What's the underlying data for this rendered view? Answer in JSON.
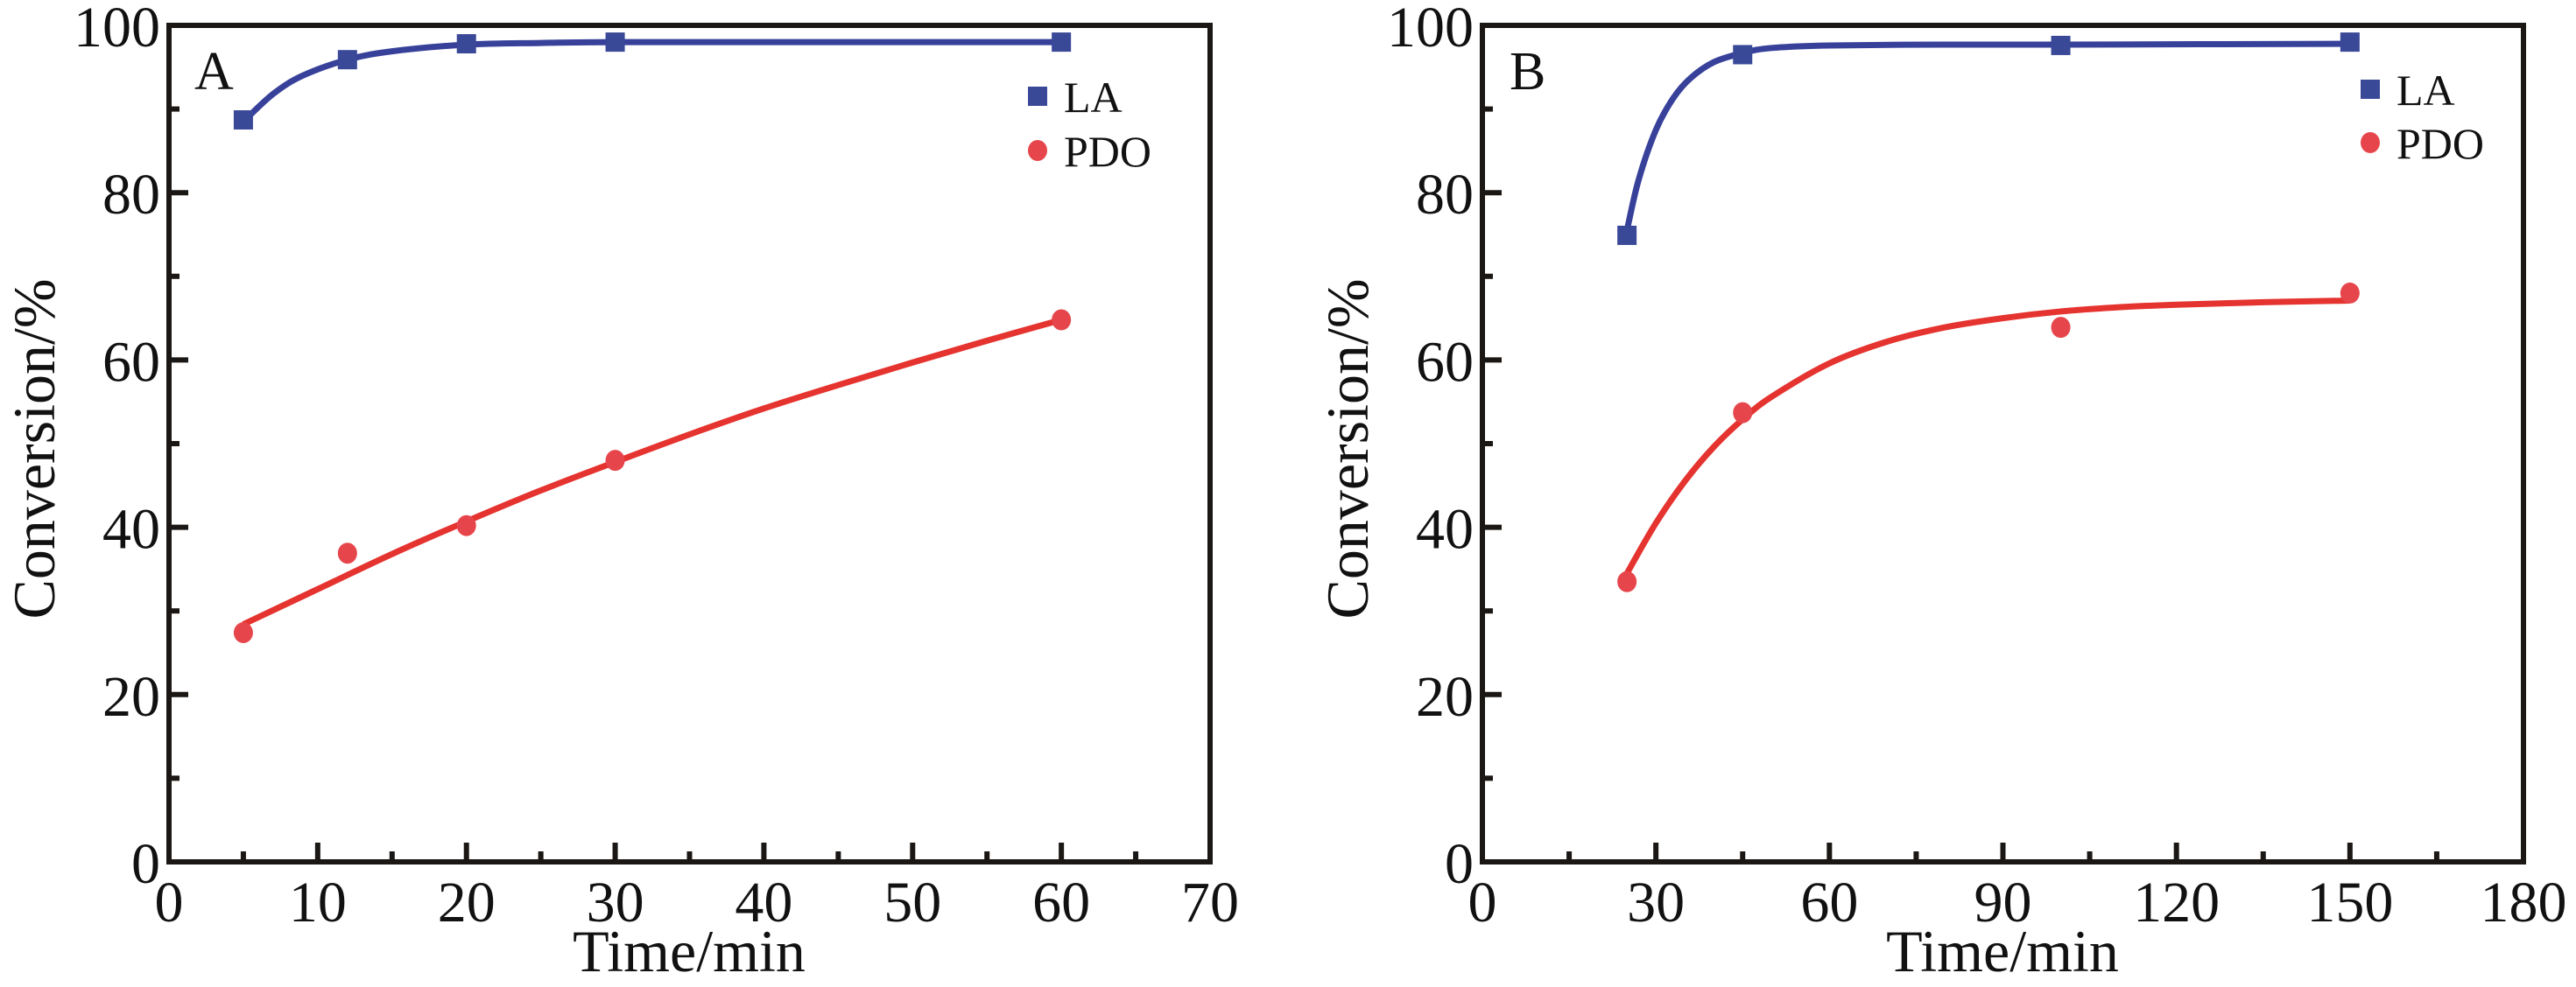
{
  "colors": {
    "LA": "#3a4898",
    "LA_line": "#37419a",
    "PDO": "#e6464b",
    "PDO_line": "#e5332f",
    "axis": "#1a1714"
  },
  "chart_data": [
    {
      "type": "scatter",
      "panel_label": "A",
      "xlabel": "Time/min",
      "ylabel": "Conversion/%",
      "xlim": [
        0,
        70
      ],
      "ylim": [
        0,
        100
      ],
      "xticks": [
        0,
        10,
        20,
        30,
        40,
        50,
        60,
        70
      ],
      "xminor_step": 5,
      "yticks": [
        0,
        20,
        40,
        60,
        80,
        100
      ],
      "yminor_step": 10,
      "grid": false,
      "legend_position": "top-right",
      "series": [
        {
          "name": "LA",
          "marker": "square",
          "x": [
            5,
            12,
            20,
            30,
            60
          ],
          "y": [
            88.7,
            95.9,
            97.8,
            98.0,
            98.0
          ],
          "fit": {
            "x": [
              5,
              7,
              9,
              12,
              15,
              20,
              25,
              30,
              40,
              50,
              60
            ],
            "y": [
              88.5,
              91.8,
              94.0,
              95.9,
              96.9,
              97.7,
              97.9,
              98.0,
              98.0,
              98.0,
              98.0
            ]
          }
        },
        {
          "name": "PDO",
          "marker": "circle",
          "x": [
            5,
            12,
            20,
            30,
            60
          ],
          "y": [
            27.4,
            36.9,
            40.2,
            48.0,
            64.8
          ],
          "fit": {
            "x": [
              5,
              10,
              15,
              20,
              25,
              30,
              35,
              40,
              45,
              50,
              55,
              60
            ],
            "y": [
              28.4,
              32.6,
              36.8,
              40.7,
              44.4,
              47.8,
              51.1,
              54.2,
              57.0,
              59.7,
              62.3,
              64.8
            ]
          }
        }
      ]
    },
    {
      "type": "scatter",
      "panel_label": "B",
      "xlabel": "Time/min",
      "ylabel": "Conversion/%",
      "xlim": [
        0,
        180
      ],
      "ylim": [
        0,
        100
      ],
      "xticks": [
        0,
        30,
        60,
        90,
        120,
        150,
        180
      ],
      "xminor_step": 15,
      "yticks": [
        0,
        20,
        40,
        60,
        80,
        100
      ],
      "yminor_step": 10,
      "grid": false,
      "legend_position": "top-right",
      "series": [
        {
          "name": "LA",
          "marker": "square",
          "x": [
            25,
            45,
            100,
            150
          ],
          "y": [
            74.9,
            96.5,
            97.6,
            98.0
          ],
          "fit": {
            "x": [
              25,
              27,
              30,
              33,
              36,
              40,
              45,
              50,
              60,
              80,
              100,
              150
            ],
            "y": [
              75.5,
              81.5,
              87.5,
              91.3,
              93.7,
              95.6,
              96.7,
              97.3,
              97.6,
              97.7,
              97.7,
              97.8
            ]
          }
        },
        {
          "name": "PDO",
          "marker": "circle",
          "x": [
            25,
            45,
            100,
            150
          ],
          "y": [
            33.5,
            53.7,
            63.9,
            68.0
          ],
          "fit": {
            "x": [
              25,
              30,
              35,
              40,
              45,
              50,
              60,
              70,
              80,
              90,
              100,
              110,
              120,
              135,
              150
            ],
            "y": [
              34.5,
              40.5,
              45.5,
              49.6,
              52.9,
              55.6,
              59.6,
              62.2,
              63.9,
              65.0,
              65.8,
              66.3,
              66.6,
              66.9,
              67.1
            ]
          }
        }
      ]
    }
  ]
}
